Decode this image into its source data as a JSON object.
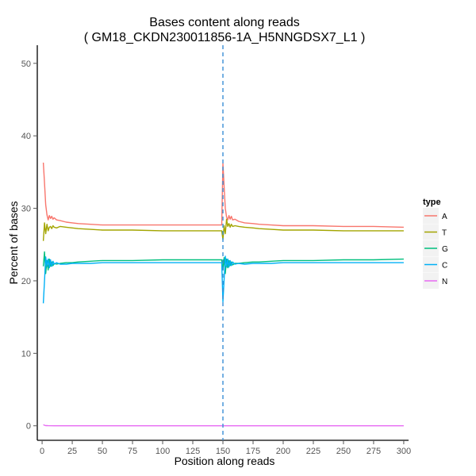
{
  "chart_data": {
    "type": "line",
    "title": "Bases content along reads",
    "subtitle": "( GM18_CKDN230011856-1A_H5NNGDSX7_L1 )",
    "xlabel": "Position along reads",
    "ylabel": "Percent of bases",
    "xlim": [
      -4,
      304
    ],
    "ylim": [
      -2,
      52.5
    ],
    "x_ticks": [
      0,
      25,
      50,
      75,
      100,
      125,
      150,
      175,
      200,
      225,
      250,
      275,
      300
    ],
    "x_tick_labels": [
      "0",
      "25",
      "50",
      "75",
      "100",
      "125",
      "150",
      "175",
      "200",
      "225",
      "250",
      "275",
      "300"
    ],
    "y_ticks": [
      0,
      10,
      20,
      30,
      40,
      50
    ],
    "y_tick_labels": [
      "0",
      "10",
      "20",
      "30",
      "40",
      "50"
    ],
    "grid": false,
    "vline": {
      "x": 150,
      "color": "#3a8fd6",
      "style": "dashed"
    },
    "legend": {
      "title": "type",
      "position": "right"
    },
    "series": [
      {
        "name": "A",
        "color": "#f8766d",
        "x": [
          1,
          2,
          3,
          4,
          5,
          6,
          7,
          8,
          9,
          10,
          12,
          15,
          20,
          25,
          30,
          40,
          50,
          75,
          100,
          125,
          149,
          150,
          151,
          152,
          153,
          154,
          155,
          156,
          157,
          158,
          160,
          163,
          168,
          175,
          180,
          190,
          200,
          225,
          250,
          275,
          300
        ],
        "values": [
          36.3,
          33.5,
          30.5,
          29.1,
          28.4,
          29.0,
          28.6,
          28.9,
          28.5,
          28.7,
          28.4,
          28.3,
          28.1,
          28.0,
          27.9,
          27.8,
          27.7,
          27.7,
          27.7,
          27.7,
          27.7,
          36.2,
          33.0,
          30.0,
          28.8,
          28.4,
          29.0,
          28.5,
          28.9,
          28.4,
          28.5,
          28.2,
          28.0,
          27.9,
          27.8,
          27.7,
          27.6,
          27.6,
          27.5,
          27.5,
          27.4
        ]
      },
      {
        "name": "T",
        "color": "#a3a500",
        "x": [
          1,
          2,
          3,
          4,
          5,
          6,
          7,
          8,
          9,
          10,
          12,
          15,
          20,
          25,
          30,
          40,
          50,
          75,
          100,
          125,
          149,
          150,
          151,
          152,
          153,
          154,
          155,
          156,
          157,
          158,
          160,
          163,
          168,
          175,
          180,
          190,
          200,
          225,
          250,
          275,
          300
        ],
        "values": [
          25.5,
          28.0,
          26.5,
          27.8,
          26.9,
          27.4,
          27.5,
          27.2,
          27.6,
          27.4,
          27.3,
          27.5,
          27.4,
          27.3,
          27.2,
          27.1,
          27.0,
          27.0,
          26.9,
          26.9,
          26.9,
          25.7,
          27.6,
          26.5,
          28.5,
          27.5,
          27.9,
          27.4,
          27.8,
          27.5,
          27.6,
          27.5,
          27.4,
          27.3,
          27.2,
          27.1,
          27.0,
          27.0,
          26.9,
          26.9,
          26.9
        ]
      },
      {
        "name": "G",
        "color": "#00bf7d",
        "x": [
          1,
          2,
          3,
          4,
          5,
          6,
          7,
          8,
          9,
          10,
          12,
          15,
          20,
          25,
          30,
          40,
          50,
          75,
          100,
          125,
          149,
          150,
          151,
          152,
          153,
          154,
          155,
          156,
          157,
          158,
          160,
          163,
          168,
          175,
          180,
          190,
          200,
          225,
          250,
          275,
          300
        ],
        "values": [
          22.0,
          24.0,
          21.0,
          22.8,
          21.5,
          23.0,
          22.0,
          22.6,
          22.1,
          22.4,
          22.3,
          22.4,
          22.5,
          22.5,
          22.6,
          22.7,
          22.8,
          22.8,
          22.9,
          22.9,
          22.9,
          21.5,
          23.2,
          21.0,
          23.0,
          21.8,
          22.8,
          22.1,
          22.6,
          22.2,
          22.4,
          22.4,
          22.5,
          22.6,
          22.6,
          22.7,
          22.8,
          22.8,
          22.9,
          22.9,
          23.0
        ]
      },
      {
        "name": "C",
        "color": "#00b0f6",
        "x": [
          1,
          2,
          3,
          4,
          5,
          6,
          7,
          8,
          9,
          10,
          12,
          15,
          20,
          25,
          30,
          40,
          50,
          75,
          100,
          125,
          149,
          150,
          151,
          152,
          153,
          154,
          155,
          156,
          157,
          158,
          160,
          163,
          168,
          175,
          180,
          190,
          200,
          225,
          250,
          275,
          300
        ],
        "values": [
          16.9,
          20.0,
          23.3,
          22.0,
          23.0,
          21.8,
          22.9,
          22.0,
          22.7,
          22.3,
          22.5,
          22.3,
          22.3,
          22.4,
          22.4,
          22.4,
          22.5,
          22.5,
          22.5,
          22.5,
          22.5,
          17.1,
          20.2,
          23.4,
          21.9,
          23.0,
          21.9,
          22.8,
          22.1,
          22.6,
          22.3,
          22.4,
          22.3,
          22.4,
          22.4,
          22.4,
          22.5,
          22.5,
          22.5,
          22.5,
          22.5
        ]
      },
      {
        "name": "N",
        "color": "#e76bf3",
        "x": [
          1,
          2,
          3,
          4,
          5,
          10,
          25,
          50,
          100,
          149,
          150,
          151,
          152,
          153,
          200,
          250,
          300
        ],
        "values": [
          0.15,
          0.08,
          0.03,
          0.02,
          0.01,
          0.0,
          0.0,
          0.0,
          0.0,
          0.0,
          0.01,
          0.0,
          0.0,
          0.0,
          0.0,
          0.0,
          0.0
        ]
      }
    ]
  }
}
